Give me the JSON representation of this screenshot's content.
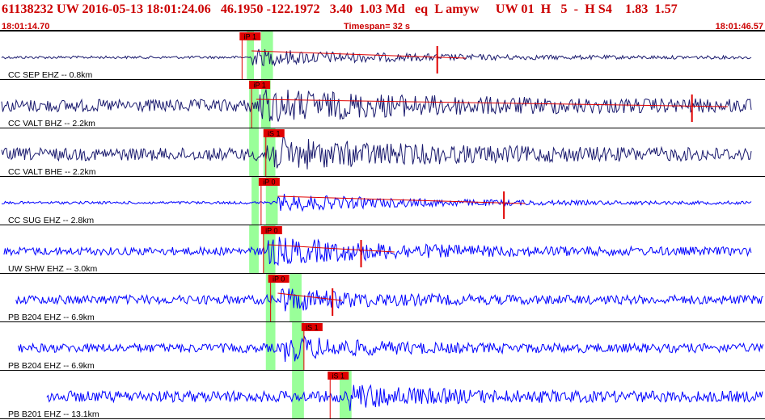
{
  "header": {
    "title_line": "61138232 UW 2016-05-13 18:01:24.06   46.1950 -122.1972   3.40  1.03 Md   eq  L amyw     UW 01  H   5  -  H S4    1.83  1.57",
    "start_time": "18:01:14.70",
    "timespan": "Timespan=  32 s",
    "end_time": "18:01:46.57"
  },
  "colors": {
    "waveform": "#0000ff",
    "waveform_dark": "#1a1a6e",
    "pick": "#e00000",
    "header_text": "#cc0000",
    "pick_window": "#99ff99",
    "divider": "#000000"
  },
  "time_axis": {
    "start_s": 0,
    "span_s": 32
  },
  "traces": [
    {
      "label": "CC SEP EHZ -- 0.8km",
      "color": "dark",
      "amp": 0.35,
      "noise": 0.06,
      "data_start_s": 0.0,
      "data_end_s": 31.5,
      "onset_s": 10.5,
      "decay_s": 6,
      "windows": [
        [
          10.3,
          10.6
        ],
        [
          10.9,
          11.4
        ]
      ],
      "picks": [
        {
          "label": "iP 1",
          "time_s": 10.1,
          "kind": "P"
        }
      ],
      "spike_s": 18.3,
      "coda_end_s": 19.5
    },
    {
      "label": "CC VALT BHZ -- 2.2km",
      "color": "dark",
      "amp": 0.55,
      "noise": 0.28,
      "data_start_s": 0.0,
      "data_end_s": 31.5,
      "onset_s": 10.7,
      "decay_s": 7,
      "windows": [
        [
          10.4,
          10.8
        ],
        [
          10.9,
          11.3
        ]
      ],
      "picks": [
        {
          "label": "iP 1",
          "time_s": 10.5,
          "kind": "P"
        }
      ],
      "spike_s": 29.0,
      "coda_end_s": 30.5
    },
    {
      "label": "CC VALT BHE -- 2.2km",
      "color": "dark",
      "amp": 0.55,
      "noise": 0.28,
      "data_start_s": 0.0,
      "data_end_s": 31.5,
      "onset_s": 11.0,
      "decay_s": 6,
      "windows": [
        [
          10.4,
          10.8
        ],
        [
          11.0,
          11.5
        ]
      ],
      "picks": [
        {
          "label": "iS 1",
          "time_s": 11.1,
          "kind": "S"
        }
      ],
      "spike_s": null,
      "coda_end_s": null
    },
    {
      "label": "CC SUG EHZ -- 2.8km",
      "color": "blue",
      "amp": 0.35,
      "noise": 0.06,
      "data_start_s": 0.0,
      "data_end_s": 31.5,
      "onset_s": 11.6,
      "decay_s": 6,
      "windows": [
        [
          10.5,
          10.8
        ],
        [
          11.1,
          11.6
        ]
      ],
      "picks": [
        {
          "label": "iP 0",
          "time_s": 10.9,
          "kind": "P"
        }
      ],
      "spike_s": 21.1,
      "coda_end_s": 22.0
    },
    {
      "label": "UW SHW EHZ -- 3.0km",
      "color": "blue",
      "amp": 0.5,
      "noise": 0.18,
      "data_start_s": 0.1,
      "data_end_s": 31.5,
      "onset_s": 11.2,
      "decay_s": 5,
      "windows": [
        [
          10.4,
          10.8
        ],
        [
          11.0,
          11.5
        ]
      ],
      "picks": [
        {
          "label": "iP 0",
          "time_s": 11.0,
          "kind": "P"
        }
      ],
      "spike_s": 15.1,
      "coda_end_s": 16.5
    },
    {
      "label": "PB B204 EHZ -- 6.9km",
      "color": "blue",
      "amp": 0.45,
      "noise": 0.2,
      "data_start_s": 0.6,
      "data_end_s": 32.0,
      "onset_s": 11.6,
      "decay_s": 3,
      "windows": [
        [
          11.1,
          11.5
        ],
        [
          12.1,
          12.6
        ]
      ],
      "picks": [
        {
          "label": "iP 0",
          "time_s": 11.3,
          "kind": "P"
        }
      ],
      "spike_s": 13.9,
      "coda_end_s": 14.3
    },
    {
      "label": "PB B204 EHZ -- 6.9km",
      "color": "blue",
      "amp": 0.45,
      "noise": 0.2,
      "data_start_s": 0.7,
      "data_end_s": 32.0,
      "onset_s": 11.9,
      "decay_s": 3,
      "windows": [
        [
          11.1,
          11.5
        ],
        [
          12.2,
          12.7
        ]
      ],
      "picks": [
        {
          "label": "iS 1",
          "time_s": 12.7,
          "kind": "S"
        }
      ],
      "spike_s": null,
      "coda_end_s": null
    },
    {
      "label": "PB B201 EHZ -- 13.1km",
      "color": "blue",
      "amp": 0.4,
      "noise": 0.25,
      "data_start_s": 1.9,
      "data_end_s": 32.0,
      "onset_s": 14.6,
      "decay_s": 3,
      "windows": [
        [
          12.2,
          12.7
        ],
        [
          14.2,
          14.7
        ]
      ],
      "picks": [
        {
          "label": "iS 1",
          "time_s": 13.8,
          "kind": "S"
        }
      ],
      "spike_s": null,
      "coda_end_s": null
    }
  ]
}
